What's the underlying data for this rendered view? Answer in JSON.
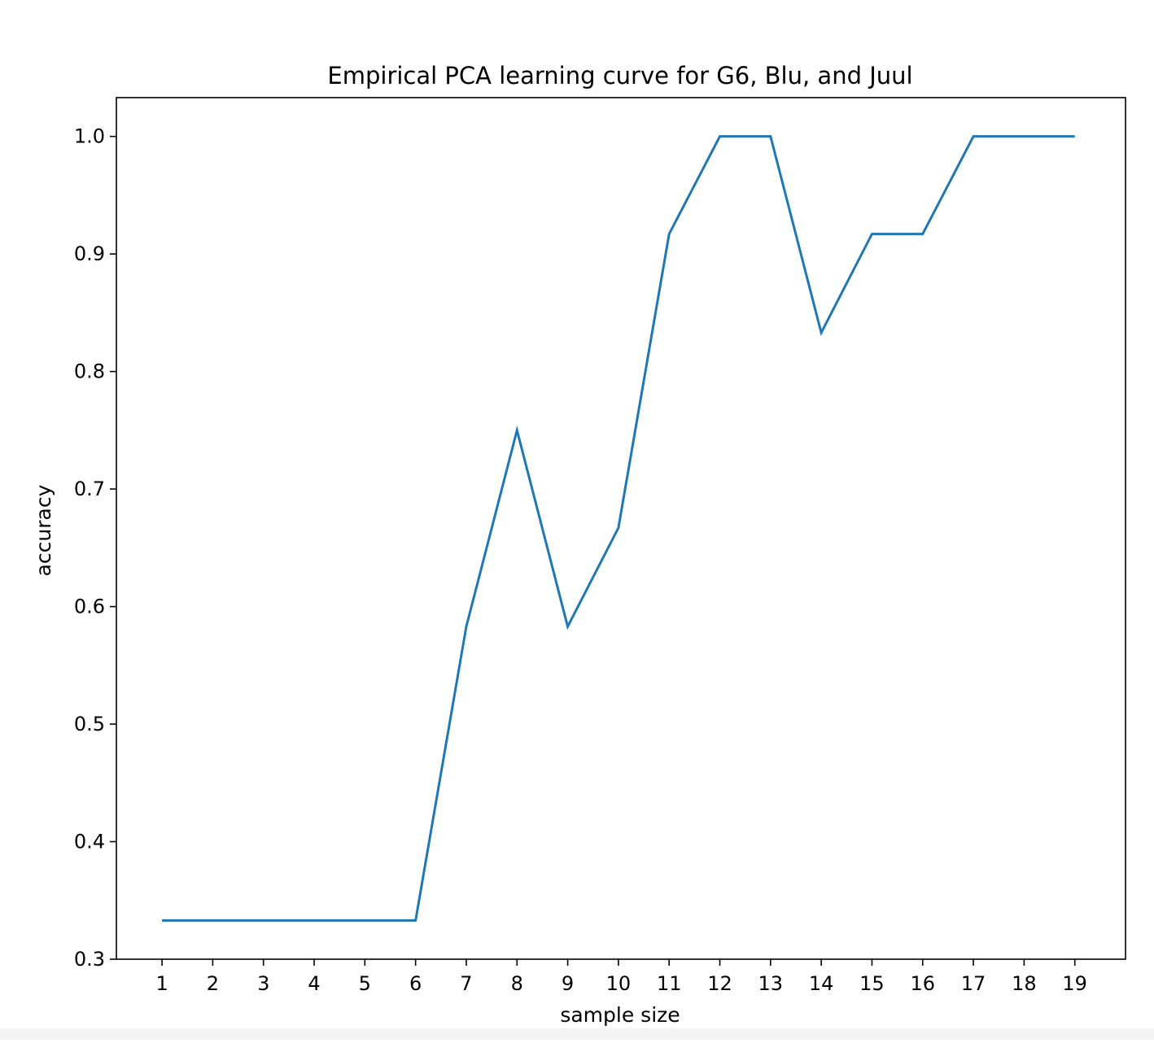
{
  "chart_data": {
    "type": "line",
    "title": "Empirical PCA learning curve for G6, Blu, and Juul",
    "xlabel": "sample size",
    "ylabel": "accuracy",
    "x": [
      1,
      2,
      3,
      4,
      5,
      6,
      7,
      8,
      9,
      10,
      11,
      12,
      13,
      14,
      15,
      16,
      17,
      18,
      19
    ],
    "x_tick_labels": [
      "1",
      "2",
      "3",
      "4",
      "5",
      "6",
      "7",
      "8",
      "9",
      "10",
      "11",
      "12",
      "13",
      "14",
      "15",
      "16",
      "17",
      "18",
      "19"
    ],
    "y_tick_values": [
      0.3,
      0.4,
      0.5,
      0.6,
      0.7,
      0.8,
      0.9,
      1.0
    ],
    "y_tick_labels": [
      "0.3",
      "0.4",
      "0.5",
      "0.6",
      "0.7",
      "0.8",
      "0.9",
      "1.0"
    ],
    "xlim": [
      0.1,
      20.0
    ],
    "ylim": [
      0.3,
      1.033
    ],
    "grid": false,
    "series": [
      {
        "color": "#1f77b4",
        "values": [
          0.333,
          0.333,
          0.333,
          0.333,
          0.333,
          0.333,
          0.583,
          0.75,
          0.583,
          0.667,
          0.917,
          1.0,
          1.0,
          0.833,
          0.917,
          0.917,
          1.0,
          1.0,
          1.0
        ]
      }
    ]
  }
}
